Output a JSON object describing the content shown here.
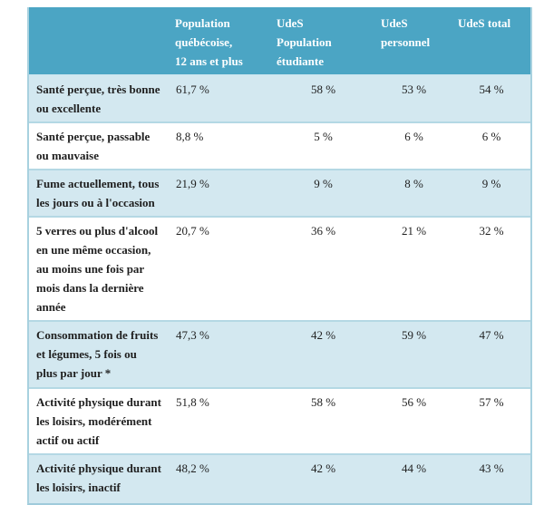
{
  "colors": {
    "header_background": "#4ba5c4",
    "shaded_row_background": "#d3e8f0",
    "plain_row_background": "#ffffff",
    "border": "#a8d1df",
    "header_text": "#ffffff",
    "body_text": "#1f1f1f"
  },
  "table": {
    "header": {
      "c0": "",
      "c1": "Population\nquébécoise,\n12 ans et plus",
      "c2": "UdeS\nPopulation\nétudiante",
      "c3": "UdeS\npersonnel",
      "c4": "UdeS total"
    },
    "rows": [
      {
        "label": "Santé perçue, très bonne\nou excellente",
        "values": [
          "61,7 %",
          "58 %",
          "53 %",
          "54 %"
        ]
      },
      {
        "label": "Santé perçue, passable\nou mauvaise",
        "values": [
          "8,8 %",
          "5 %",
          "6 %",
          "6 %"
        ]
      },
      {
        "label": "Fume actuellement, tous\nles jours ou à l'occasion",
        "values": [
          "21,9 %",
          "9 %",
          "8 %",
          "9 %"
        ]
      },
      {
        "label": "5 verres ou plus d'alcool\nen une même occasion,\nau moins une fois par\nmois dans la dernière\nannée",
        "values": [
          "20,7 %",
          "36 %",
          "21 %",
          "32 %"
        ]
      },
      {
        "label": "Consommation de fruits\net légumes, 5 fois ou\nplus par jour *",
        "values": [
          "47,3 %",
          "42 %",
          "59 %",
          "47 %"
        ]
      },
      {
        "label": "Activité physique durant\nles loisirs, modérément\nactif ou actif",
        "values": [
          "51,8 %",
          "58 %",
          "56 %",
          "57 %"
        ]
      },
      {
        "label": "Activité physique durant\nles loisirs, inactif",
        "values": [
          "48,2 %",
          "42 %",
          "44 %",
          "43 %"
        ]
      }
    ]
  },
  "chart_data": {
    "type": "table",
    "columns": [
      "",
      "Population québécoise, 12 ans et plus",
      "UdeS Population étudiante",
      "UdeS personnel",
      "UdeS total"
    ],
    "rows": [
      [
        "Santé perçue, très bonne ou excellente",
        "61,7 %",
        "58 %",
        "53 %",
        "54 %"
      ],
      [
        "Santé perçue, passable ou mauvaise",
        "8,8 %",
        "5 %",
        "6 %",
        "6 %"
      ],
      [
        "Fume actuellement, tous les jours ou à l'occasion",
        "21,9 %",
        "9 %",
        "8 %",
        "9 %"
      ],
      [
        "5 verres ou plus d'alcool en une même occasion, au moins une fois par mois dans la dernière année",
        "20,7 %",
        "36 %",
        "21 %",
        "32 %"
      ],
      [
        "Consommation de fruits et légumes, 5 fois ou plus par jour *",
        "47,3 %",
        "42 %",
        "59 %",
        "47 %"
      ],
      [
        "Activité physique durant les loisirs, modérément actif ou actif",
        "51,8 %",
        "58 %",
        "56 %",
        "57 %"
      ],
      [
        "Activité physique durant les loisirs, inactif",
        "48,2 %",
        "42 %",
        "44 %",
        "43 %"
      ]
    ]
  }
}
